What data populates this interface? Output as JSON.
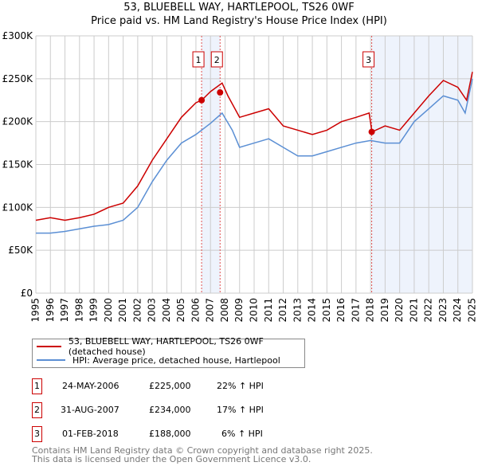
{
  "chart_data": {
    "type": "line",
    "title": "53, BLUEBELL WAY, HARTLEPOOL, TS26 0WF",
    "subtitle": "Price paid vs. HM Land Registry's House Price Index (HPI)",
    "xlim": [
      1995,
      2025
    ],
    "ylim": [
      0,
      300000
    ],
    "x_ticks": [
      "1995",
      "1996",
      "1997",
      "1998",
      "1999",
      "2000",
      "2001",
      "2002",
      "2003",
      "2004",
      "2005",
      "2006",
      "2007",
      "2008",
      "2009",
      "2010",
      "2011",
      "2012",
      "2013",
      "2014",
      "2015",
      "2016",
      "2017",
      "2018",
      "2019",
      "2020",
      "2021",
      "2022",
      "2023",
      "2024",
      "2025"
    ],
    "y_ticks": [
      {
        "v": 0,
        "label": "£0"
      },
      {
        "v": 50000,
        "label": "£50K"
      },
      {
        "v": 100000,
        "label": "£100K"
      },
      {
        "v": 150000,
        "label": "£150K"
      },
      {
        "v": 200000,
        "label": "£200K"
      },
      {
        "v": 250000,
        "label": "£250K"
      },
      {
        "v": 300000,
        "label": "£300K"
      }
    ],
    "grid": true,
    "series": [
      {
        "name": "53, BLUEBELL WAY, HARTLEPOOL, TS26 0WF (detached house)",
        "color": "#cc0000",
        "x": [
          1995,
          1996,
          1997,
          1998,
          1999,
          2000,
          2001,
          2002,
          2003,
          2004,
          2005,
          2006,
          2006.4,
          2007,
          2007.8,
          2008.2,
          2009,
          2010,
          2011,
          2012,
          2013,
          2014,
          2015,
          2016,
          2017,
          2017.9,
          2018.1,
          2019,
          2020,
          2021,
          2022,
          2023,
          2024,
          2024.6,
          2025
        ],
        "y": [
          85000,
          88000,
          85000,
          88000,
          92000,
          100000,
          105000,
          125000,
          155000,
          180000,
          205000,
          222000,
          225000,
          235000,
          245000,
          230000,
          205000,
          210000,
          215000,
          195000,
          190000,
          185000,
          190000,
          200000,
          205000,
          210000,
          188000,
          195000,
          190000,
          210000,
          230000,
          248000,
          240000,
          225000,
          258000
        ]
      },
      {
        "name": "HPI: Average price, detached house, Hartlepool",
        "color": "#5b8fd4",
        "x": [
          1995,
          1996,
          1997,
          1998,
          1999,
          2000,
          2001,
          2002,
          2003,
          2004,
          2005,
          2006,
          2007,
          2007.8,
          2008.5,
          2009,
          2010,
          2011,
          2012,
          2013,
          2014,
          2015,
          2016,
          2017,
          2018,
          2019,
          2020,
          2021,
          2022,
          2023,
          2024,
          2024.5,
          2025
        ],
        "y": [
          70000,
          70000,
          72000,
          75000,
          78000,
          80000,
          85000,
          100000,
          130000,
          155000,
          175000,
          185000,
          198000,
          210000,
          190000,
          170000,
          175000,
          180000,
          170000,
          160000,
          160000,
          165000,
          170000,
          175000,
          178000,
          175000,
          175000,
          200000,
          215000,
          230000,
          225000,
          210000,
          250000
        ]
      }
    ],
    "sales": [
      {
        "label": "1",
        "x": 2006.39,
        "y": 225000
      },
      {
        "label": "2",
        "x": 2007.66,
        "y": 234000
      },
      {
        "label": "3",
        "x": 2018.08,
        "y": 188000
      }
    ],
    "shaded_ranges": [
      [
        2006.39,
        2007.66
      ],
      [
        2018.08,
        2025
      ]
    ],
    "legend_placement": "below"
  },
  "legend": [
    "53, BLUEBELL WAY, HARTLEPOOL, TS26 0WF (detached house)",
    "HPI: Average price, detached house, Hartlepool"
  ],
  "transactions": [
    {
      "num": "1",
      "date": "24-MAY-2006",
      "price": "£225,000",
      "hpi": "22% ↑ HPI"
    },
    {
      "num": "2",
      "date": "31-AUG-2007",
      "price": "£234,000",
      "hpi": "17% ↑ HPI"
    },
    {
      "num": "3",
      "date": "01-FEB-2018",
      "price": "£188,000",
      "hpi": "6% ↑ HPI"
    }
  ],
  "footer": [
    "Contains HM Land Registry data © Crown copyright and database right 2025.",
    "This data is licensed under the Open Government Licence v3.0."
  ]
}
